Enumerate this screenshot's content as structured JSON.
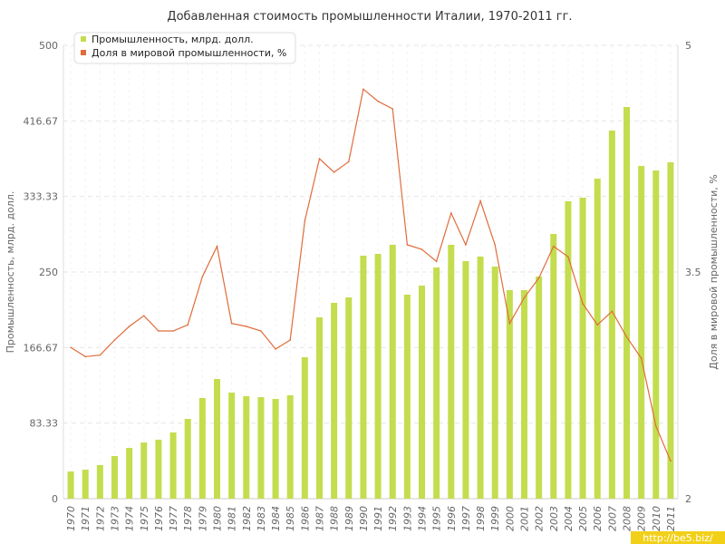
{
  "chart_data": {
    "type": "bar+line",
    "title": "Добавленная стоимость промышленности Италии, 1970-2011 гг.",
    "categories": [
      "1970",
      "1971",
      "1972",
      "1973",
      "1974",
      "1975",
      "1976",
      "1977",
      "1978",
      "1979",
      "1980",
      "1981",
      "1982",
      "1983",
      "1984",
      "1985",
      "1986",
      "1987",
      "1988",
      "1989",
      "1990",
      "1991",
      "1992",
      "1993",
      "1994",
      "1995",
      "1996",
      "1997",
      "1998",
      "1999",
      "2000",
      "2001",
      "2002",
      "2003",
      "2004",
      "2005",
      "2006",
      "2007",
      "2008",
      "2009",
      "2010",
      "2011"
    ],
    "y_left": {
      "label": "Промышленность, млрд. долл.",
      "ylim": [
        0,
        500
      ],
      "ticks": [
        "0",
        "83.33",
        "166.67",
        "250",
        "333.33",
        "416.67",
        "500"
      ]
    },
    "y_right": {
      "label": "Доля в мировой промышленности, %",
      "ylim": [
        2,
        5
      ],
      "ticks": [
        "2",
        "3.5",
        "5"
      ]
    },
    "series": [
      {
        "name": "Промышленность, млрд. долл.",
        "type": "bar",
        "axis": "left",
        "color": "#c3dd4e",
        "values": [
          30,
          32,
          37,
          47,
          56,
          62,
          65,
          73,
          88,
          111,
          132,
          117,
          113,
          112,
          110,
          114,
          156,
          200,
          216,
          222,
          268,
          270,
          280,
          225,
          235,
          255,
          280,
          262,
          267,
          256,
          230,
          230,
          245,
          292,
          328,
          332,
          353,
          406,
          432,
          367,
          362,
          371
        ]
      },
      {
        "name": "Доля в мировой промышленности, %",
        "type": "line",
        "axis": "right",
        "color": "#e06c3c",
        "values": [
          3.0,
          2.94,
          2.95,
          3.05,
          3.14,
          3.21,
          3.11,
          3.11,
          3.15,
          3.47,
          3.67,
          3.16,
          3.14,
          3.11,
          2.99,
          3.05,
          3.84,
          4.25,
          4.16,
          4.23,
          4.71,
          4.63,
          4.58,
          3.68,
          3.65,
          3.57,
          3.89,
          3.68,
          3.97,
          3.68,
          3.16,
          3.33,
          3.46,
          3.67,
          3.6,
          3.29,
          3.15,
          3.24,
          3.07,
          2.93,
          2.48,
          2.25
        ]
      }
    ],
    "legend": {
      "position": "top-left"
    },
    "grid": true
  },
  "watermark": "http://be5.biz/"
}
